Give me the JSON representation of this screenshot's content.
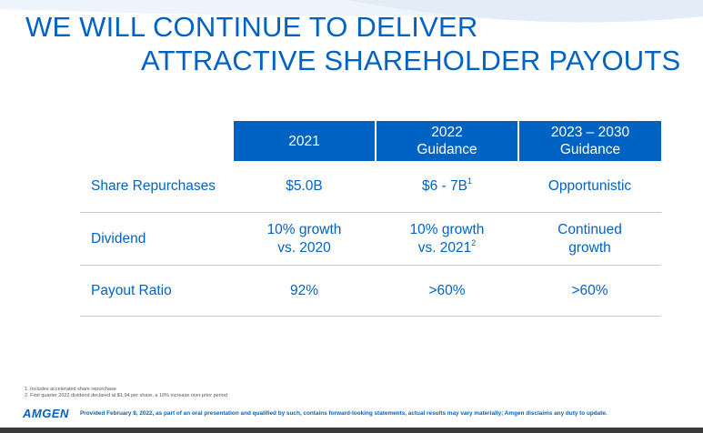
{
  "title": {
    "line1": "WE WILL CONTINUE TO DELIVER",
    "line2": "ATTRACTIVE SHAREHOLDER PAYOUTS"
  },
  "table": {
    "headers": {
      "col1": "2021",
      "col2_line1": "2022",
      "col2_line2": "Guidance",
      "col3_line1": "2023 – 2030",
      "col3_line2": "Guidance"
    },
    "rows": {
      "repurchases": {
        "label": "Share Repurchases",
        "v2021": "$5.0B",
        "v2022": "$6 - 7B",
        "v2022_sup": "1",
        "v2023": "Opportunistic"
      },
      "dividend": {
        "label": "Dividend",
        "v2021_line1": "10% growth",
        "v2021_line2": "vs. 2020",
        "v2022_line1": "10% growth",
        "v2022_line2": "vs. 2021",
        "v2022_sup": "2",
        "v2023_line1": "Continued",
        "v2023_line2": "growth"
      },
      "payout": {
        "label": "Payout Ratio",
        "v2021": "92%",
        "v2022": ">60%",
        "v2023": ">60%"
      }
    }
  },
  "footnotes": {
    "f1": "1.  Includes accelerated share repurchase",
    "f2": "2.  First quarter 2022 dividend declared at $1.94 per share, a 10% increase over prior period"
  },
  "footer": {
    "logo": "AMGEN",
    "legal": "Provided February 8, 2022, as part of an oral presentation and qualified by such, contains forward-looking statements, actual results may vary materially; Amgen disclaims any duty to update."
  },
  "colors": {
    "brand_blue": "#0063c3",
    "header_text": "#ffffff",
    "divider": "#c9c9c9"
  }
}
